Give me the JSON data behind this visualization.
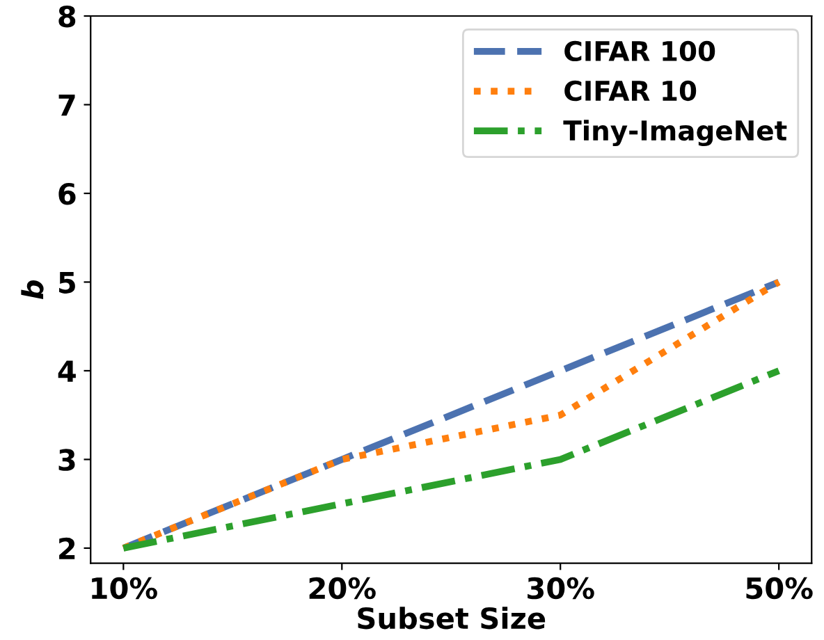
{
  "chart_data": {
    "type": "line",
    "xlabel": "Subset Size",
    "ylabel": "b",
    "categories": [
      "10%",
      "20%",
      "30%",
      "50%"
    ],
    "series": [
      {
        "name": "CIFAR 100",
        "color": "#4c72b0",
        "values": [
          2,
          3,
          4,
          5
        ],
        "line_style": "dashed"
      },
      {
        "name": "CIFAR 10",
        "color": "#ff7f0e",
        "values": [
          2,
          3,
          3.5,
          5
        ],
        "line_style": "dotted"
      },
      {
        "name": "Tiny-ImageNet",
        "color": "#2ca02c",
        "values": [
          2,
          2.5,
          3,
          4
        ],
        "line_style": "dashdot"
      }
    ],
    "ylim": [
      1.83,
      8
    ],
    "yticks": [
      2,
      3,
      4,
      5,
      6,
      7,
      8
    ],
    "legend": "top right",
    "grid": false
  }
}
